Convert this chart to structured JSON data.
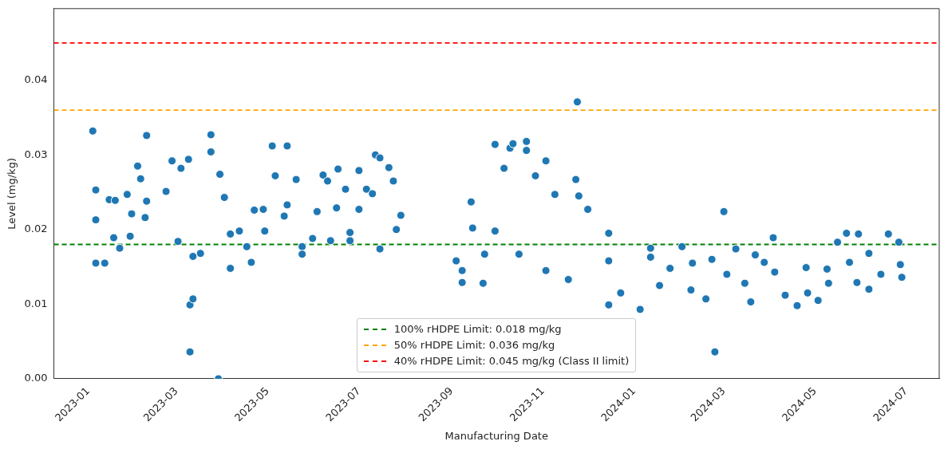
{
  "chart_data": {
    "type": "scatter",
    "xlabel": "Manufacturing Date",
    "ylabel": "Level (mg/kg)",
    "xlim": [
      "2022-12-09",
      "2024-07-23"
    ],
    "xticks": [
      "2023-01",
      "2023-03",
      "2023-05",
      "2023-07",
      "2023-09",
      "2023-11",
      "2024-01",
      "2024-03",
      "2024-05",
      "2024-07"
    ],
    "ylim": [
      0,
      0.0496
    ],
    "yticks": [
      {
        "value": 0,
        "label": "0.00"
      },
      {
        "value": 0.01,
        "label": "0.01"
      },
      {
        "value": 0.02,
        "label": "0.02"
      },
      {
        "value": 0.03,
        "label": "0.03"
      },
      {
        "value": 0.04,
        "label": "0.04"
      }
    ],
    "grid": false,
    "legend": "bottom",
    "marker": "circle",
    "series": [
      {
        "color": "#1f77b4",
        "x": [
          "2023-01-04",
          "2023-01-06",
          "2023-01-06",
          "2023-01-06",
          "2023-01-12",
          "2023-01-15",
          "2023-01-19",
          "2023-01-18",
          "2023-01-22",
          "2023-01-27",
          "2023-01-30",
          "2023-01-29",
          "2023-02-03",
          "2023-02-05",
          "2023-02-09",
          "2023-02-09",
          "2023-02-08",
          "2023-02-22",
          "2023-02-26",
          "2023-03-02",
          "2023-03-04",
          "2023-03-09",
          "2023-03-10",
          "2023-03-12",
          "2023-03-10",
          "2023-03-12",
          "2023-03-17",
          "2023-03-24",
          "2023-03-24",
          "2023-03-30",
          "2023-03-29",
          "2023-04-02",
          "2023-04-06",
          "2023-04-06",
          "2023-04-12",
          "2023-04-17",
          "2023-04-20",
          "2023-04-22",
          "2023-04-28",
          "2023-04-29",
          "2023-05-04",
          "2023-05-06",
          "2023-05-14",
          "2023-05-14",
          "2023-05-12",
          "2023-05-20",
          "2023-05-24",
          "2023-05-24",
          "2023-05-31",
          "2023-06-03",
          "2023-06-07",
          "2023-06-10",
          "2023-06-12",
          "2023-06-17",
          "2023-06-16",
          "2023-06-22",
          "2023-06-25",
          "2023-06-25",
          "2023-07-01",
          "2023-07-01",
          "2023-07-06",
          "2023-07-10",
          "2023-07-12",
          "2023-07-15",
          "2023-07-15",
          "2023-07-21",
          "2023-07-24",
          "2023-07-26",
          "2023-07-29",
          "2023-09-04",
          "2023-09-08",
          "2023-09-08",
          "2023-09-14",
          "2023-09-15",
          "2023-09-22",
          "2023-09-23",
          "2023-09-30",
          "2023-09-30",
          "2023-10-06",
          "2023-10-10",
          "2023-10-12",
          "2023-10-16",
          "2023-10-21",
          "2023-10-21",
          "2023-10-27",
          "2023-11-03",
          "2023-11-03",
          "2023-11-09",
          "2023-11-18",
          "2023-11-24",
          "2023-11-23",
          "2023-11-25",
          "2023-12-01",
          "2023-12-15",
          "2023-12-15",
          "2023-12-15",
          "2023-12-23",
          "2024-01-05",
          "2024-01-12",
          "2024-01-12",
          "2024-01-18",
          "2024-01-25",
          "2024-02-02",
          "2024-02-08",
          "2024-02-09",
          "2024-02-18",
          "2024-02-22",
          "2024-02-24",
          "2024-03-01",
          "2024-03-03",
          "2024-03-09",
          "2024-03-15",
          "2024-03-19",
          "2024-03-22",
          "2024-03-28",
          "2024-04-03",
          "2024-04-04",
          "2024-04-11",
          "2024-04-19",
          "2024-04-25",
          "2024-04-26",
          "2024-05-03",
          "2024-05-09",
          "2024-05-10",
          "2024-05-16",
          "2024-05-22",
          "2024-05-24",
          "2024-05-30",
          "2024-05-29",
          "2024-06-06",
          "2024-06-06",
          "2024-06-14",
          "2024-06-19",
          "2024-06-26",
          "2024-06-27",
          "2024-06-28"
        ],
        "values": [
          0.0332,
          0.0253,
          0.0213,
          0.0155,
          0.0155,
          0.024,
          0.0239,
          0.0189,
          0.0175,
          0.0247,
          0.0221,
          0.0191,
          0.0285,
          0.0268,
          0.0326,
          0.0238,
          0.0216,
          0.0251,
          0.0292,
          0.0184,
          0.0282,
          0.0294,
          0.0099,
          0.0107,
          0.0036,
          0.0164,
          0.0168,
          0.0327,
          0.0304,
          0.0274,
          0,
          0.0243,
          0.0148,
          0.0194,
          0.0198,
          0.0177,
          0.0156,
          0.0226,
          0.0227,
          0.0198,
          0.0312,
          0.0272,
          0.0312,
          0.0233,
          0.0218,
          0.0267,
          0.0177,
          0.0167,
          0.0188,
          0.0224,
          0.0273,
          0.0265,
          0.0185,
          0.0281,
          0.0229,
          0.0254,
          0.0185,
          0.0196,
          0.0279,
          0.0227,
          0.0254,
          0.0248,
          0.03,
          0.0174,
          0.0296,
          0.0283,
          0.0265,
          0.02,
          0.0219,
          0.0158,
          0.0129,
          0.0145,
          0.0237,
          0.0202,
          0.0128,
          0.0167,
          0.0314,
          0.0198,
          0.0282,
          0.0309,
          0.0315,
          0.0167,
          0.0318,
          0.0306,
          0.0272,
          0.0292,
          0.0145,
          0.0247,
          0.0133,
          0.0371,
          0.0267,
          0.0245,
          0.0227,
          0.0195,
          0.0099,
          0.0158,
          0.0115,
          0.0093,
          0.0175,
          0.0163,
          0.0125,
          0.0148,
          0.0177,
          0.0119,
          0.0155,
          0.0107,
          0.016,
          0.0036,
          0.0224,
          0.014,
          0.0174,
          0.0128,
          0.0103,
          0.0166,
          0.0156,
          0.0189,
          0.0143,
          0.0112,
          0.0098,
          0.0149,
          0.0115,
          0.0105,
          0.0147,
          0.0128,
          0.0183,
          0.0195,
          0.0156,
          0.0194,
          0.0129,
          0.012,
          0.0168,
          0.014,
          0.0194,
          0.0183,
          0.0153,
          0.0136
        ]
      }
    ],
    "ref_lines": [
      {
        "axis": "y",
        "value": 0.018,
        "label": "100% rHDPE Limit: 0.018 mg/kg",
        "color": "#008000",
        "line_style": "dashed"
      },
      {
        "axis": "y",
        "value": 0.036,
        "label": "50% rHDPE Limit: 0.036 mg/kg",
        "color": "#ffa500",
        "line_style": "dashed"
      },
      {
        "axis": "y",
        "value": 0.045,
        "label": "40% rHDPE Limit: 0.045 mg/kg (Class II limit)",
        "color": "#ff0000",
        "line_style": "dashed"
      }
    ]
  }
}
